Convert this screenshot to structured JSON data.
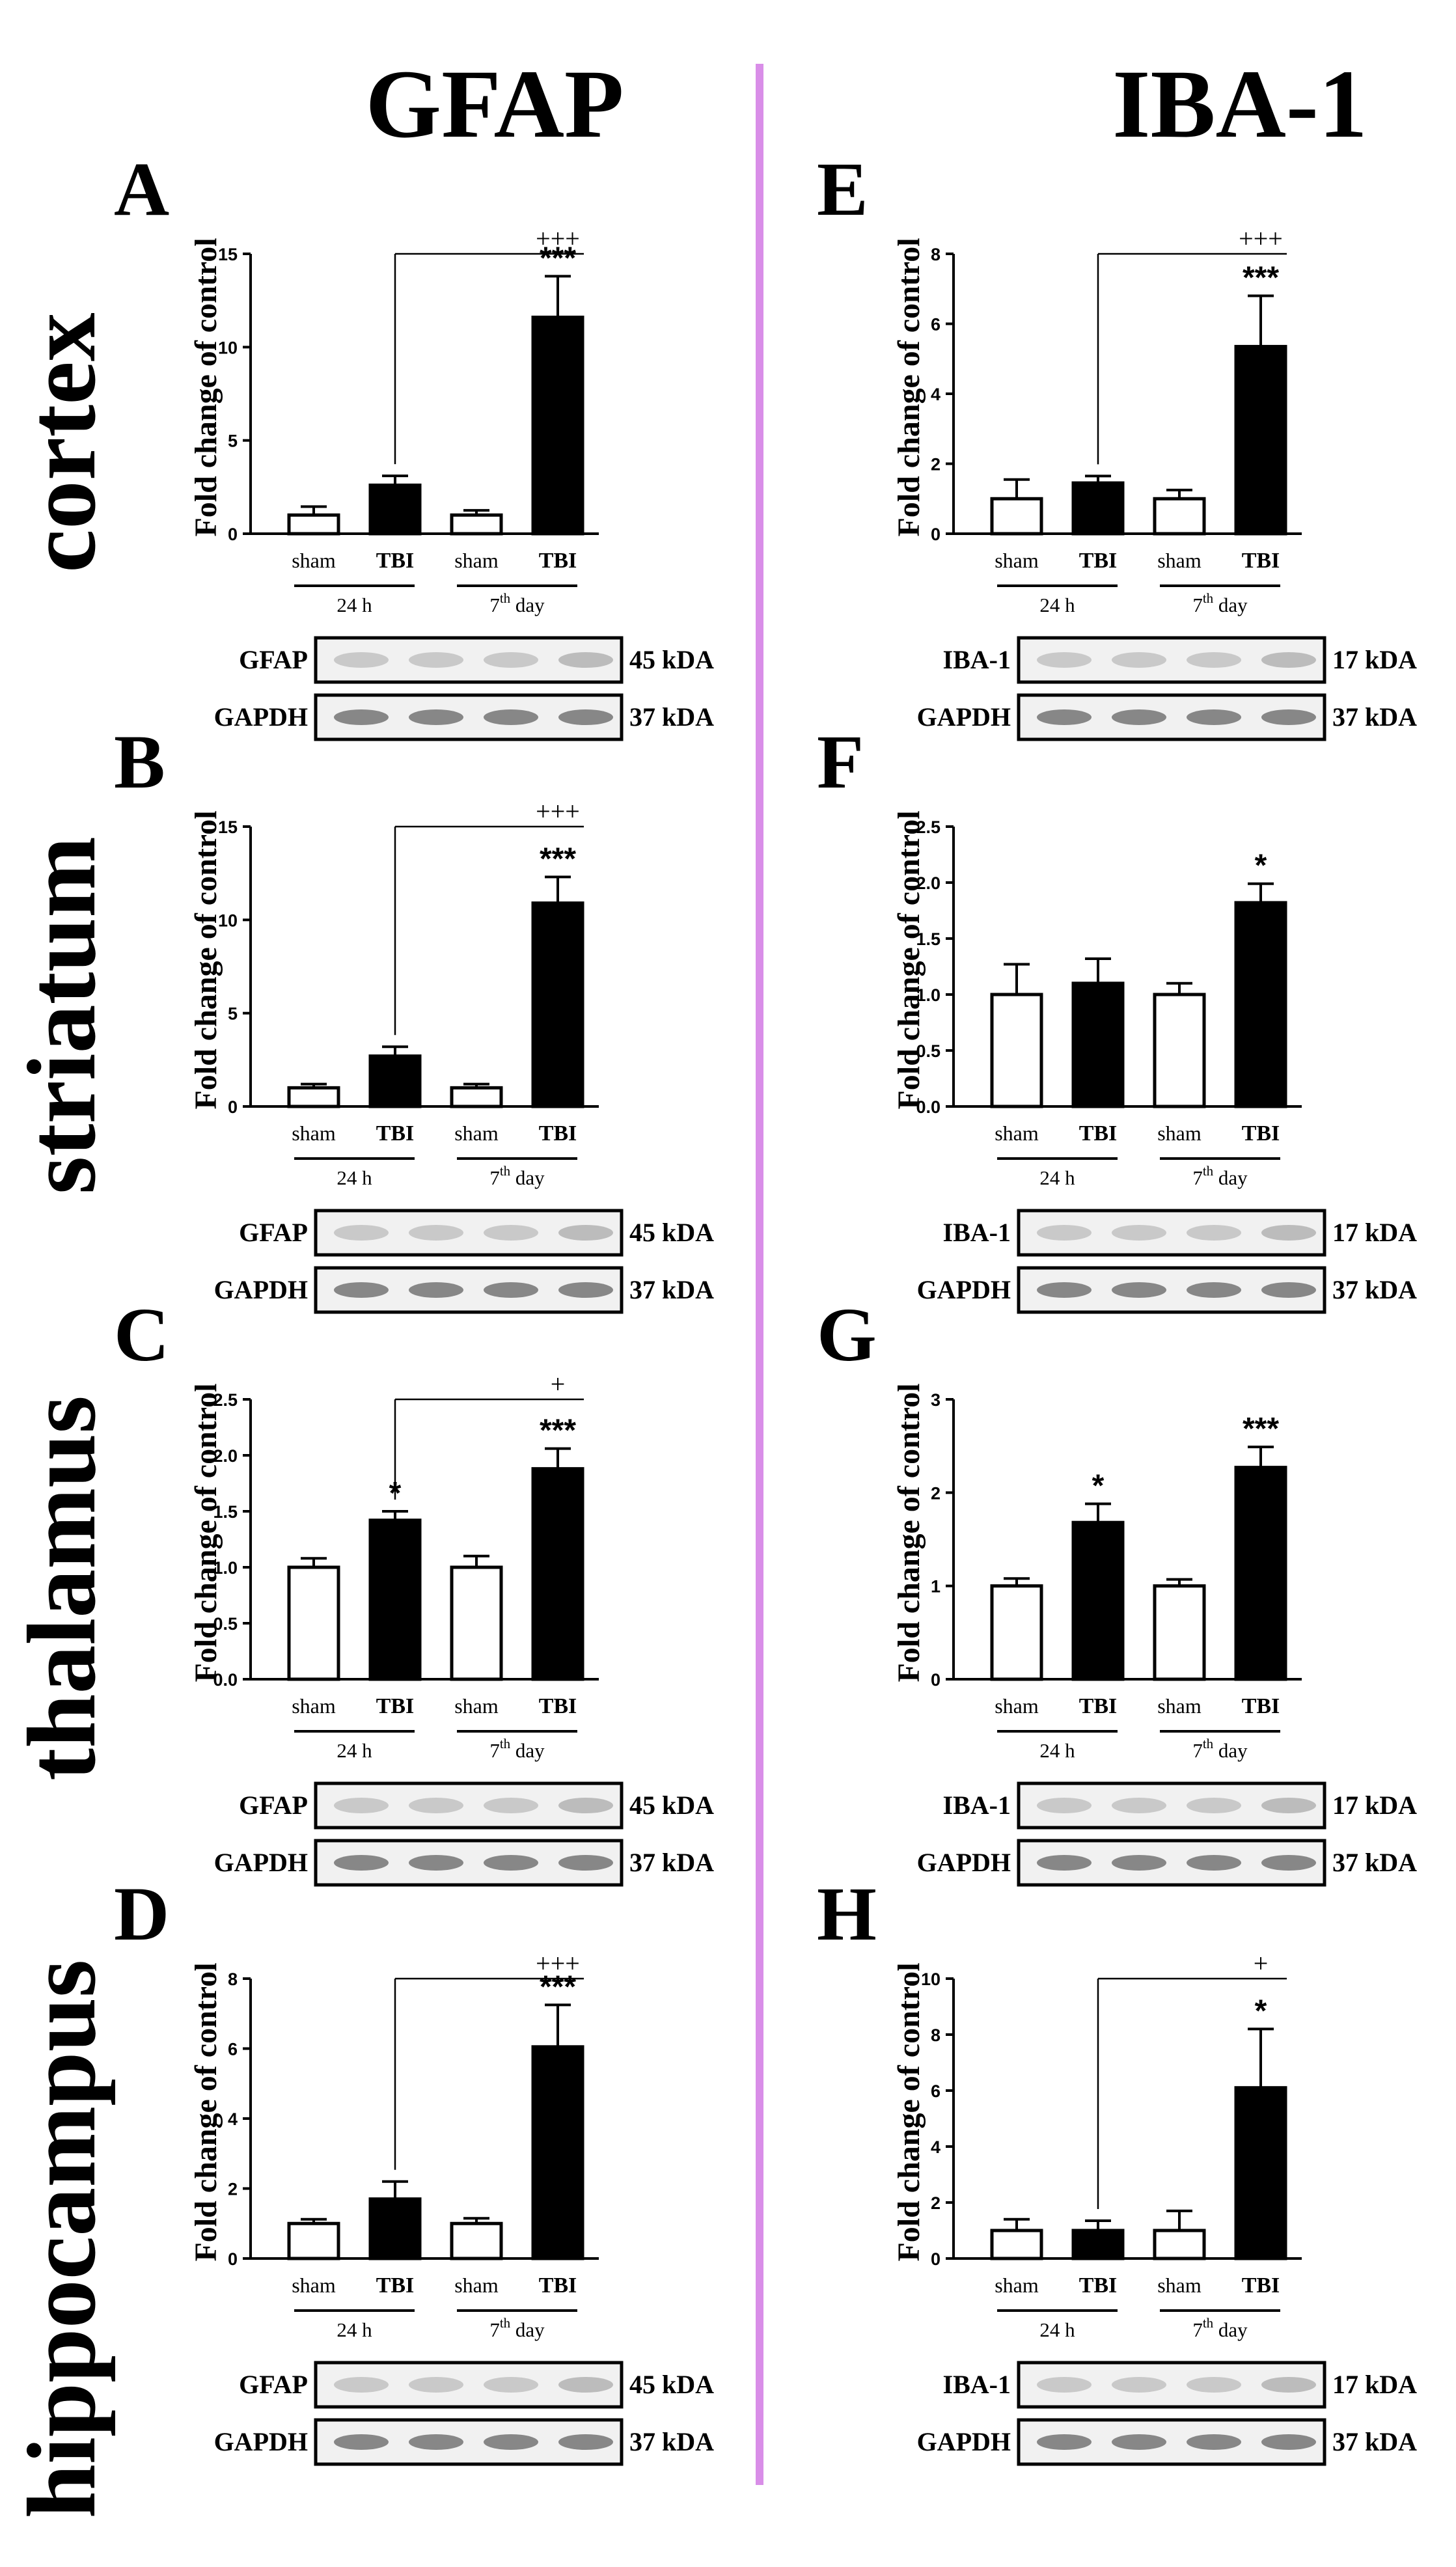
{
  "headers": {
    "left": "GFAP",
    "right": "IBA-1"
  },
  "divider_color": "#d98ee8",
  "regions": [
    "cortex",
    "striatum",
    "thalamus",
    "hippocampus"
  ],
  "chart_data": [
    {
      "panel": "A",
      "type": "bar",
      "marker": "GFAP",
      "region": "cortex",
      "ylabel": "Fold change of control",
      "categories": [
        "sham",
        "TBI",
        "sham",
        "TBI"
      ],
      "groups": [
        {
          "label": "24 h"
        },
        {
          "label": "7",
          "sup": "th",
          "suffix": " day"
        }
      ],
      "values": [
        1.0,
        2.6,
        1.0,
        11.6
      ],
      "errors": [
        0.45,
        0.5,
        0.25,
        2.2
      ],
      "fills": [
        "#ffffff",
        "#000000",
        "#ffffff",
        "#000000"
      ],
      "ylim": [
        0,
        15
      ],
      "yticks": [
        "0",
        "5",
        "10",
        "15"
      ],
      "ytick_values": [
        0,
        5,
        10,
        15
      ],
      "bar_annotations": [
        null,
        null,
        null,
        "***"
      ],
      "comparison": {
        "from": 1,
        "to": 3,
        "label": "+++"
      },
      "blots": [
        {
          "protein": "GFAP",
          "kda": "45 kDA"
        },
        {
          "protein": "GAPDH",
          "kda": "37 kDA"
        }
      ]
    },
    {
      "panel": "B",
      "type": "bar",
      "marker": "GFAP",
      "region": "striatum",
      "ylabel": "Fold change of control",
      "categories": [
        "sham",
        "TBI",
        "sham",
        "TBI"
      ],
      "groups": [
        {
          "label": "24 h"
        },
        {
          "label": "7",
          "sup": "th",
          "suffix": " day"
        }
      ],
      "values": [
        1.0,
        2.7,
        1.0,
        10.9
      ],
      "errors": [
        0.2,
        0.5,
        0.2,
        1.4
      ],
      "fills": [
        "#ffffff",
        "#000000",
        "#ffffff",
        "#000000"
      ],
      "ylim": [
        0,
        15
      ],
      "yticks": [
        "0",
        "5",
        "10",
        "15"
      ],
      "ytick_values": [
        0,
        5,
        10,
        15
      ],
      "bar_annotations": [
        null,
        null,
        null,
        "***"
      ],
      "comparison": {
        "from": 1,
        "to": 3,
        "label": "+++"
      },
      "blots": [
        {
          "protein": "GFAP",
          "kda": "45 kDA"
        },
        {
          "protein": "GAPDH",
          "kda": "37 kDA"
        }
      ]
    },
    {
      "panel": "C",
      "type": "bar",
      "marker": "GFAP",
      "region": "thalamus",
      "ylabel": "Fold change of control",
      "categories": [
        "sham",
        "TBI",
        "sham",
        "TBI"
      ],
      "groups": [
        {
          "label": "24 h"
        },
        {
          "label": "7",
          "sup": "th",
          "suffix": " day"
        }
      ],
      "values": [
        1.0,
        1.42,
        1.0,
        1.88
      ],
      "errors": [
        0.08,
        0.08,
        0.1,
        0.18
      ],
      "fills": [
        "#ffffff",
        "#000000",
        "#ffffff",
        "#000000"
      ],
      "ylim": [
        0,
        2.5
      ],
      "yticks": [
        "0.0",
        "0.5",
        "1.0",
        "1.5",
        "2.0",
        "2.5"
      ],
      "ytick_values": [
        0,
        0.5,
        1.0,
        1.5,
        2.0,
        2.5
      ],
      "bar_annotations": [
        null,
        "*",
        null,
        "***"
      ],
      "comparison": {
        "from": 1,
        "to": 3,
        "label": "+"
      },
      "blots": [
        {
          "protein": "GFAP",
          "kda": "45 kDA"
        },
        {
          "protein": "GAPDH",
          "kda": "37 kDA"
        }
      ]
    },
    {
      "panel": "D",
      "type": "bar",
      "marker": "GFAP",
      "region": "hippocampus",
      "ylabel": "Fold change of control",
      "categories": [
        "sham",
        "TBI",
        "sham",
        "TBI"
      ],
      "groups": [
        {
          "label": "24 h"
        },
        {
          "label": "7",
          "sup": "th",
          "suffix": " day"
        }
      ],
      "values": [
        1.0,
        1.7,
        1.0,
        6.05
      ],
      "errors": [
        0.12,
        0.5,
        0.15,
        1.2
      ],
      "fills": [
        "#ffffff",
        "#000000",
        "#ffffff",
        "#000000"
      ],
      "ylim": [
        0,
        8
      ],
      "yticks": [
        "0",
        "2",
        "4",
        "6",
        "8"
      ],
      "ytick_values": [
        0,
        2,
        4,
        6,
        8
      ],
      "bar_annotations": [
        null,
        null,
        null,
        "***"
      ],
      "comparison": {
        "from": 1,
        "to": 3,
        "label": "+++"
      },
      "blots": [
        {
          "protein": "GFAP",
          "kda": "45 kDA"
        },
        {
          "protein": "GAPDH",
          "kda": "37 kDA"
        }
      ]
    },
    {
      "panel": "E",
      "type": "bar",
      "marker": "IBA-1",
      "region": "cortex",
      "ylabel": "Fold change of control",
      "categories": [
        "sham",
        "TBI",
        "sham",
        "TBI"
      ],
      "groups": [
        {
          "label": "24 h"
        },
        {
          "label": "7",
          "sup": "th",
          "suffix": " day"
        }
      ],
      "values": [
        1.0,
        1.45,
        1.0,
        5.35
      ],
      "errors": [
        0.55,
        0.2,
        0.25,
        1.45
      ],
      "fills": [
        "#ffffff",
        "#000000",
        "#ffffff",
        "#000000"
      ],
      "ylim": [
        0,
        8
      ],
      "yticks": [
        "0",
        "2",
        "4",
        "6",
        "8"
      ],
      "ytick_values": [
        0,
        2,
        4,
        6,
        8
      ],
      "bar_annotations": [
        null,
        null,
        null,
        "***"
      ],
      "comparison": {
        "from": 1,
        "to": 3,
        "label": "+++"
      },
      "blots": [
        {
          "protein": "IBA-1",
          "kda": "17 kDA"
        },
        {
          "protein": "GAPDH",
          "kda": "37 kDA"
        }
      ]
    },
    {
      "panel": "F",
      "type": "bar",
      "marker": "IBA-1",
      "region": "striatum",
      "ylabel": "Fold change of control",
      "categories": [
        "sham",
        "TBI",
        "sham",
        "TBI"
      ],
      "groups": [
        {
          "label": "24 h"
        },
        {
          "label": "7",
          "sup": "th",
          "suffix": " day"
        }
      ],
      "values": [
        1.0,
        1.1,
        1.0,
        1.82
      ],
      "errors": [
        0.27,
        0.22,
        0.1,
        0.17
      ],
      "fills": [
        "#ffffff",
        "#000000",
        "#ffffff",
        "#000000"
      ],
      "ylim": [
        0,
        2.5
      ],
      "yticks": [
        "0.0",
        "0.5",
        "1.0",
        "1.5",
        "2.0",
        "2.5"
      ],
      "ytick_values": [
        0,
        0.5,
        1.0,
        1.5,
        2.0,
        2.5
      ],
      "bar_annotations": [
        null,
        null,
        null,
        "*"
      ],
      "comparison": null,
      "blots": [
        {
          "protein": "IBA-1",
          "kda": "17 kDA"
        },
        {
          "protein": "GAPDH",
          "kda": "37 kDA"
        }
      ]
    },
    {
      "panel": "G",
      "type": "bar",
      "marker": "IBA-1",
      "region": "thalamus",
      "ylabel": "Fold change of control",
      "categories": [
        "sham",
        "TBI",
        "sham",
        "TBI"
      ],
      "groups": [
        {
          "label": "24 h"
        },
        {
          "label": "7",
          "sup": "th",
          "suffix": " day"
        }
      ],
      "values": [
        1.0,
        1.68,
        1.0,
        2.27
      ],
      "errors": [
        0.08,
        0.2,
        0.07,
        0.22
      ],
      "fills": [
        "#ffffff",
        "#000000",
        "#ffffff",
        "#000000"
      ],
      "ylim": [
        0,
        3
      ],
      "yticks": [
        "0",
        "1",
        "2",
        "3"
      ],
      "ytick_values": [
        0,
        1,
        2,
        3
      ],
      "bar_annotations": [
        null,
        "*",
        null,
        "***"
      ],
      "comparison": null,
      "blots": [
        {
          "protein": "IBA-1",
          "kda": "17 kDA"
        },
        {
          "protein": "GAPDH",
          "kda": "37 kDA"
        }
      ]
    },
    {
      "panel": "H",
      "type": "bar",
      "marker": "IBA-1",
      "region": "hippocampus",
      "ylabel": "Fold change of control",
      "categories": [
        "sham",
        "TBI",
        "sham",
        "TBI"
      ],
      "groups": [
        {
          "label": "24 h"
        },
        {
          "label": "7",
          "sup": "th",
          "suffix": " day"
        }
      ],
      "values": [
        1.0,
        1.0,
        1.0,
        6.1
      ],
      "errors": [
        0.4,
        0.35,
        0.7,
        2.1
      ],
      "fills": [
        "#ffffff",
        "#000000",
        "#ffffff",
        "#000000"
      ],
      "ylim": [
        0,
        10
      ],
      "yticks": [
        "0",
        "2",
        "4",
        "6",
        "8",
        "10"
      ],
      "ytick_values": [
        0,
        2,
        4,
        6,
        8,
        10
      ],
      "bar_annotations": [
        null,
        null,
        null,
        "*"
      ],
      "comparison": {
        "from": 1,
        "to": 3,
        "label": "+"
      },
      "blots": [
        {
          "protein": "IBA-1",
          "kda": "17 kDA"
        },
        {
          "protein": "GAPDH",
          "kda": "37 kDA"
        }
      ]
    }
  ]
}
